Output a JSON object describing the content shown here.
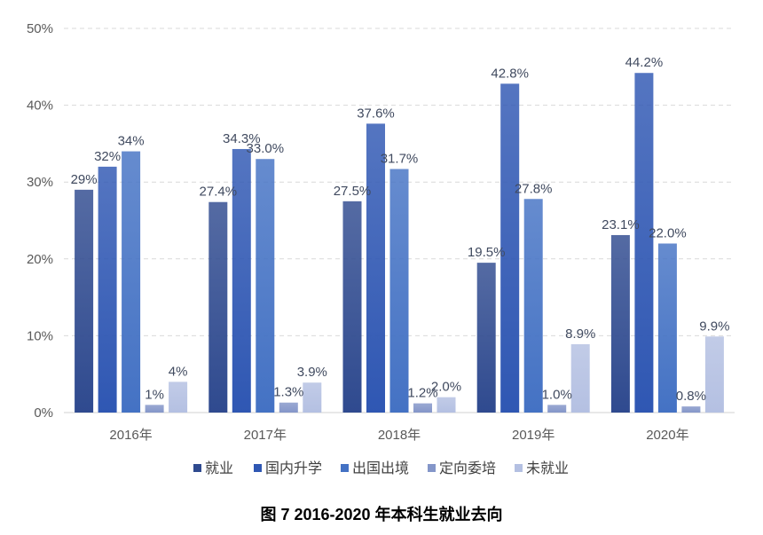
{
  "chart_data": {
    "type": "bar",
    "categories": [
      "2016年",
      "2017年",
      "2018年",
      "2019年",
      "2020年"
    ],
    "series": [
      {
        "name": "就业",
        "values": [
          29,
          27.4,
          27.5,
          19.5,
          23.1
        ],
        "labels": [
          "29%",
          "27.4%",
          "27.5%",
          "19.5%",
          "23.1%"
        ],
        "color": "#2f4a8f"
      },
      {
        "name": "国内升学",
        "values": [
          32,
          34.3,
          37.6,
          42.8,
          44.2
        ],
        "labels": [
          "32%",
          "34.3%",
          "37.6%",
          "42.8%",
          "44.2%"
        ],
        "color": "#2f57b3"
      },
      {
        "name": "出国出境",
        "values": [
          34,
          33.0,
          31.7,
          27.8,
          22.0
        ],
        "labels": [
          "34%",
          "33.0%",
          "31.7%",
          "27.8%",
          "22.0%"
        ],
        "color": "#4472c4"
      },
      {
        "name": "定向委培",
        "values": [
          1,
          1.3,
          1.2,
          1.0,
          0.8
        ],
        "labels": [
          "1%",
          "1.3%",
          "1.2%",
          "1.0%",
          "0.8%"
        ],
        "color": "#8496c9"
      },
      {
        "name": "未就业",
        "values": [
          4,
          3.9,
          2.0,
          8.9,
          9.9
        ],
        "labels": [
          "4%",
          "3.9%",
          "2.0%",
          "8.9%",
          "9.9%"
        ],
        "color": "#b4c0e2"
      }
    ],
    "y_ticks": [
      "0%",
      "10%",
      "20%",
      "30%",
      "40%",
      "50%"
    ],
    "ylim": [
      0,
      50
    ],
    "grid": true,
    "legend_position": "bottom"
  },
  "caption": "图 7   2016-2020 年本科生就业去向"
}
